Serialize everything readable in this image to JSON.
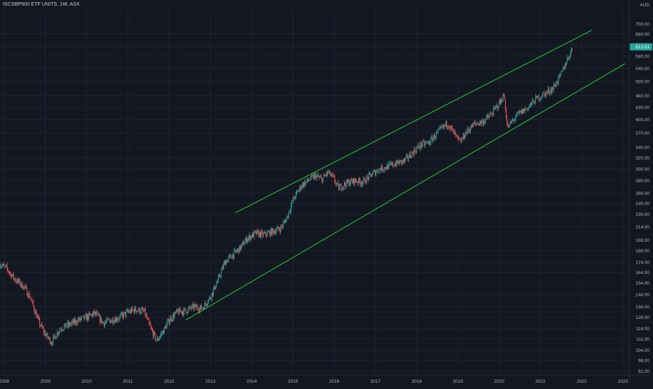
{
  "header": {
    "symbol_title": "ISCSBP500 ETF UNITS, 1W, ASX",
    "currency": "AUD",
    "last_price_label": "612.01"
  },
  "colors": {
    "background": "#131722",
    "grid": "#1f2330",
    "up": "#26a69a",
    "down": "#ef5350",
    "channel": "#22d22b",
    "last_price_tag": "#26a69a",
    "axis_text": "#b2b5be"
  },
  "chart_data": {
    "type": "candlestick",
    "title": "ISCSBP500 ETF UNITS, 1W, ASX",
    "currency": "AUD",
    "y_scale": "log",
    "x_range": [
      2007.9,
      2023.15
    ],
    "y_range": [
      90,
      760
    ],
    "x_ticks": [
      "2008",
      "2009",
      "2010",
      "2011",
      "2012",
      "2013",
      "2014",
      "2015",
      "2016",
      "2017",
      "2018",
      "2019",
      "2020",
      "2021",
      "2022",
      "2023"
    ],
    "y_ticks": [
      "92.00",
      "98.00",
      "104.00",
      "111.00",
      "118.00",
      "126.00",
      "134.00",
      "144.00",
      "154.00",
      "164.00",
      "174.00",
      "186.00",
      "198.00",
      "214.00",
      "230.00",
      "245.00",
      "260.00",
      "280.00",
      "300.00",
      "320.00",
      "340.00",
      "370.00",
      "400.00",
      "430.00",
      "460.00",
      "500.00",
      "540.00",
      "580.00",
      "620.00",
      "660.00",
      "700.00"
    ],
    "last_price": 612.01,
    "price_path": [
      [
        2007.9,
        172
      ],
      [
        2008.05,
        168
      ],
      [
        2008.25,
        158
      ],
      [
        2008.5,
        150
      ],
      [
        2008.65,
        140
      ],
      [
        2008.85,
        122
      ],
      [
        2009.0,
        114
      ],
      [
        2009.15,
        109
      ],
      [
        2009.35,
        118
      ],
      [
        2009.6,
        121
      ],
      [
        2009.8,
        124
      ],
      [
        2010.0,
        126
      ],
      [
        2010.2,
        129
      ],
      [
        2010.4,
        122
      ],
      [
        2010.6,
        124
      ],
      [
        2010.8,
        126
      ],
      [
        2011.0,
        130
      ],
      [
        2011.2,
        132
      ],
      [
        2011.4,
        130
      ],
      [
        2011.55,
        118
      ],
      [
        2011.7,
        110
      ],
      [
        2011.85,
        116
      ],
      [
        2012.0,
        124
      ],
      [
        2012.2,
        130
      ],
      [
        2012.4,
        131
      ],
      [
        2012.6,
        134
      ],
      [
        2012.8,
        133
      ],
      [
        2013.0,
        142
      ],
      [
        2013.2,
        158
      ],
      [
        2013.35,
        174
      ],
      [
        2013.5,
        180
      ],
      [
        2013.7,
        188
      ],
      [
        2013.9,
        200
      ],
      [
        2014.1,
        206
      ],
      [
        2014.3,
        204
      ],
      [
        2014.5,
        208
      ],
      [
        2014.7,
        212
      ],
      [
        2014.85,
        225
      ],
      [
        2015.0,
        250
      ],
      [
        2015.2,
        272
      ],
      [
        2015.4,
        282
      ],
      [
        2015.55,
        288
      ],
      [
        2015.7,
        282
      ],
      [
        2015.85,
        294
      ],
      [
        2016.0,
        282
      ],
      [
        2016.1,
        268
      ],
      [
        2016.3,
        276
      ],
      [
        2016.5,
        280
      ],
      [
        2016.7,
        278
      ],
      [
        2016.9,
        290
      ],
      [
        2017.1,
        300
      ],
      [
        2017.3,
        304
      ],
      [
        2017.5,
        310
      ],
      [
        2017.7,
        314
      ],
      [
        2017.9,
        330
      ],
      [
        2018.1,
        345
      ],
      [
        2018.3,
        350
      ],
      [
        2018.5,
        370
      ],
      [
        2018.75,
        392
      ],
      [
        2018.95,
        362
      ],
      [
        2019.05,
        350
      ],
      [
        2019.2,
        372
      ],
      [
        2019.4,
        390
      ],
      [
        2019.6,
        395
      ],
      [
        2019.8,
        412
      ],
      [
        2020.0,
        440
      ],
      [
        2020.12,
        462
      ],
      [
        2020.2,
        380
      ],
      [
        2020.28,
        392
      ],
      [
        2020.45,
        412
      ],
      [
        2020.7,
        430
      ],
      [
        2020.9,
        452
      ],
      [
        2021.1,
        465
      ],
      [
        2021.3,
        480
      ],
      [
        2021.5,
        520
      ],
      [
        2021.62,
        560
      ],
      [
        2021.72,
        590
      ],
      [
        2021.78,
        612.01
      ]
    ],
    "channel_lines": [
      {
        "name": "",
        "from": [
          2013.6,
          232
        ],
        "to": [
          2022.25,
          675
        ]
      },
      {
        "name": "",
        "from": [
          2012.4,
          124
        ],
        "to": [
          2023.05,
          555
        ]
      }
    ]
  }
}
